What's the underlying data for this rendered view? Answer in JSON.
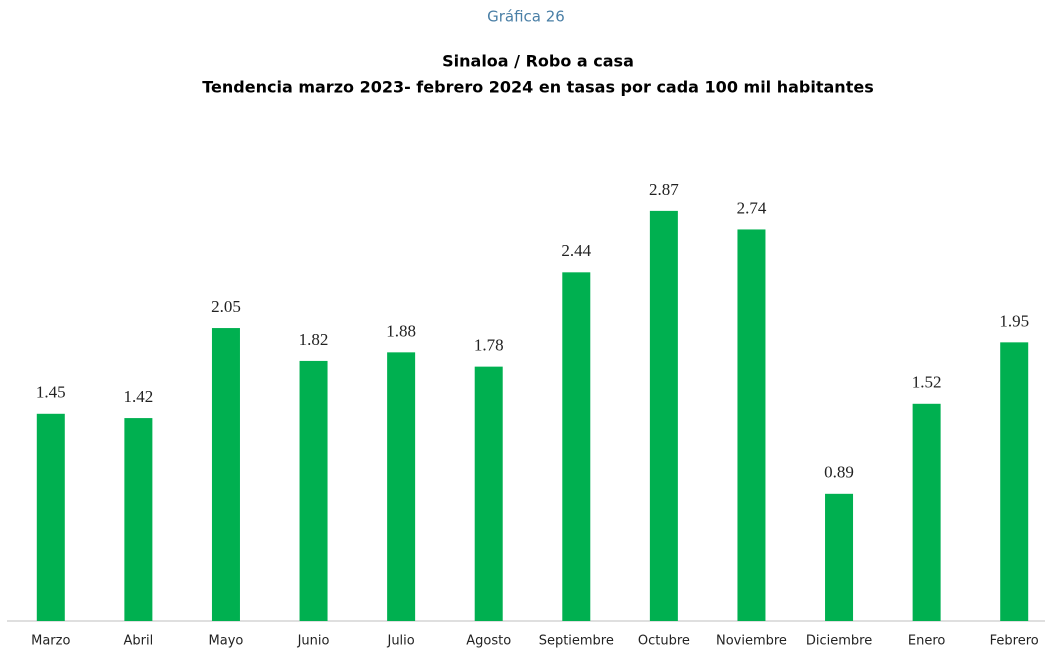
{
  "chart_data": {
    "type": "bar",
    "caption": "Gráfica 26",
    "title": "Sinaloa / Robo a casa",
    "subtitle": "Tendencia marzo 2023- febrero 2024 en tasas por cada  100 mil habitantes",
    "categories": [
      "Marzo",
      "Abril",
      "Mayo",
      "Junio",
      "Julio",
      "Agosto",
      "Septiembre",
      "Octubre",
      "Noviembre",
      "Diciembre",
      "Enero",
      "Febrero"
    ],
    "values": [
      1.45,
      1.42,
      2.05,
      1.82,
      1.88,
      1.78,
      2.44,
      2.87,
      2.74,
      0.89,
      1.52,
      1.95
    ],
    "color": "#00b050"
  }
}
